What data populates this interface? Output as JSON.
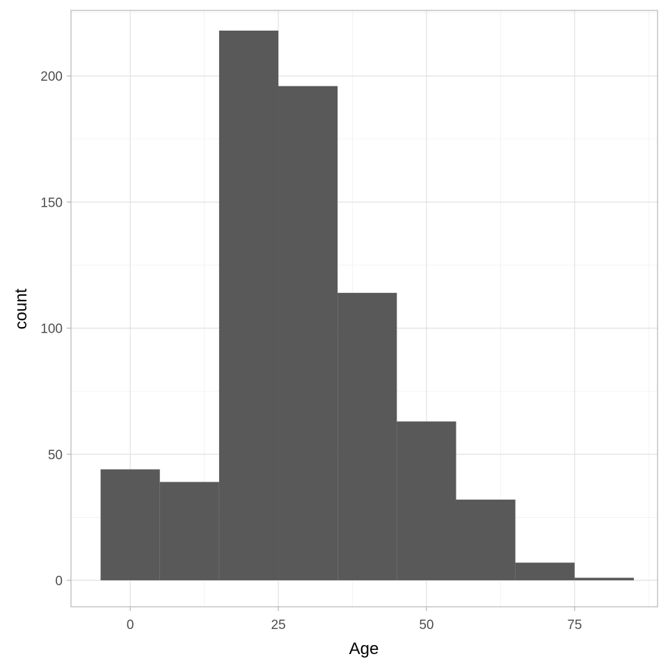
{
  "chart_data": {
    "type": "bar",
    "title": "",
    "xlabel": "Age",
    "ylabel": "count",
    "xlim": [
      -10,
      89
    ],
    "ylim": [
      -10.5,
      226
    ],
    "x_ticks": [
      0,
      25,
      50,
      75
    ],
    "y_ticks": [
      0,
      50,
      100,
      150,
      200
    ],
    "grid": true,
    "bins": [
      {
        "x0": -5,
        "x1": 5,
        "value": 44
      },
      {
        "x0": 5,
        "x1": 15,
        "value": 39
      },
      {
        "x0": 15,
        "x1": 25,
        "value": 218
      },
      {
        "x0": 25,
        "x1": 35,
        "value": 196
      },
      {
        "x0": 35,
        "x1": 45,
        "value": 114
      },
      {
        "x0": 45,
        "x1": 55,
        "value": 63
      },
      {
        "x0": 55,
        "x1": 65,
        "value": 32
      },
      {
        "x0": 65,
        "x1": 75,
        "value": 7
      },
      {
        "x0": 75,
        "x1": 85,
        "value": 1
      }
    ],
    "colors": {
      "bar": "#595959",
      "grid": "#dedede",
      "border": "#b3b3b3"
    }
  }
}
